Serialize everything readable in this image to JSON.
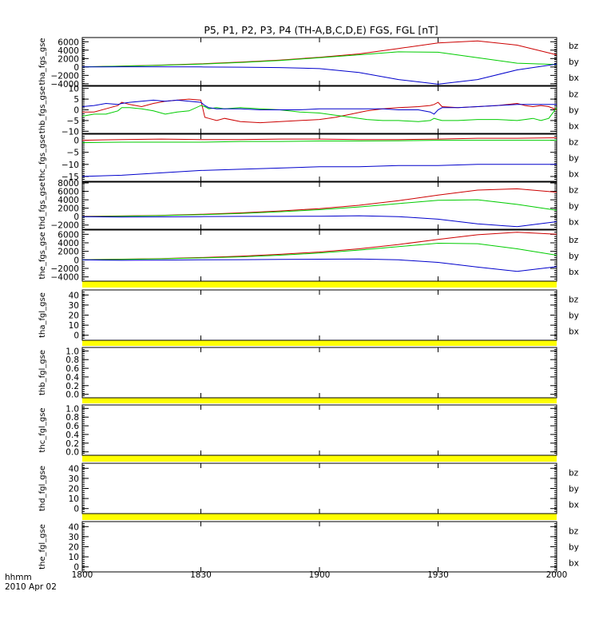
{
  "title": "P5, P1, P2, P3, P4 (TH-A,B,C,D,E) FGS, FGL [nT]",
  "xaxis": {
    "row1": "hhmm",
    "row2": "2010 Apr 02",
    "ticks": [
      "1800",
      "1830",
      "1900",
      "1930",
      "2000"
    ],
    "tick_values_min": [
      0,
      30,
      60,
      90,
      120
    ],
    "range_min": [
      0,
      120
    ]
  },
  "colors": {
    "bx": "#0000cc",
    "by": "#00cc00",
    "bz": "#cc0000",
    "gap_bar": "#ffff00"
  },
  "chart_data": [
    {
      "type": "line",
      "ylabel": "tha_fgs_gse",
      "ylim": [
        -4400,
        7000
      ],
      "yticks": [
        "6000",
        "4000",
        "2000",
        "0",
        "−2000",
        "−4000"
      ],
      "ytick_values": [
        6000,
        4000,
        2000,
        0,
        -2000,
        -4000
      ],
      "x": [
        0,
        10,
        20,
        30,
        40,
        50,
        60,
        70,
        80,
        90,
        100,
        110,
        120
      ],
      "legend": [
        "bz",
        "by",
        "bx"
      ],
      "series": [
        {
          "name": "bz",
          "values": [
            50,
            200,
            450,
            750,
            1150,
            1650,
            2300,
            3100,
            4400,
            5700,
            6200,
            5200,
            2900
          ]
        },
        {
          "name": "by",
          "values": [
            30,
            180,
            400,
            700,
            1050,
            1550,
            2200,
            2900,
            3600,
            3500,
            2200,
            900,
            600
          ]
        },
        {
          "name": "bx",
          "values": [
            0,
            50,
            50,
            0,
            -50,
            -150,
            -400,
            -1300,
            -3000,
            -4100,
            -3000,
            -700,
            700
          ]
        }
      ]
    },
    {
      "type": "line",
      "ylabel": "thb_fgs_gse",
      "ylim": [
        -11,
        11
      ],
      "yticks": [
        "10",
        "5",
        "0",
        "−5",
        "−10"
      ],
      "ytick_values": [
        10,
        5,
        0,
        -5,
        -10
      ],
      "x": [
        0,
        3,
        6,
        9,
        10,
        12,
        15,
        18,
        21,
        24,
        27,
        30,
        31,
        32,
        34,
        36,
        40,
        45,
        50,
        55,
        60,
        64,
        68,
        72,
        76,
        80,
        85,
        88,
        89,
        90,
        91,
        95,
        100,
        105,
        110,
        112,
        114,
        116,
        118,
        120
      ],
      "legend": [
        "bz",
        "by",
        "bx"
      ],
      "series": [
        {
          "name": "bz",
          "values": [
            -1,
            -1,
            0.5,
            2,
            3.5,
            2.5,
            1.5,
            3,
            4,
            4.5,
            5,
            4.5,
            -3.5,
            -4,
            -5,
            -4,
            -5.5,
            -6,
            -5.5,
            -5,
            -4.5,
            -3.5,
            -2,
            -0.5,
            0.5,
            1,
            1.5,
            2,
            2.5,
            3.5,
            1.5,
            1,
            1.5,
            2,
            3,
            2,
            1.5,
            2,
            1.5,
            0
          ]
        },
        {
          "name": "by",
          "values": [
            -3,
            -2,
            -2,
            -0.5,
            1,
            1,
            0.5,
            -0.5,
            -2,
            -1,
            -0.5,
            2,
            1.5,
            0.5,
            1,
            0.5,
            1,
            0.5,
            0,
            -1,
            -1.5,
            -2.5,
            -3.5,
            -4.5,
            -5,
            -5,
            -5.5,
            -5,
            -4,
            -4.5,
            -5,
            -5,
            -4.5,
            -4.5,
            -5,
            -4.5,
            -4,
            -5,
            -4,
            1
          ]
        },
        {
          "name": "bx",
          "values": [
            1.5,
            2,
            3,
            2.5,
            3,
            3.5,
            4,
            4.5,
            4,
            4.5,
            4,
            3.5,
            2,
            1,
            0.5,
            0.5,
            0.5,
            0,
            0,
            0,
            0.5,
            0.5,
            0.5,
            0.5,
            0.5,
            0,
            0,
            -1,
            -2,
            0,
            1,
            1,
            1.5,
            2,
            2.5,
            2.5,
            2.5,
            2.5,
            2.5,
            2.5
          ]
        }
      ]
    },
    {
      "type": "line",
      "ylabel": "thc_fgs_gse",
      "ylim": [
        -17,
        2.5
      ],
      "yticks": [
        "0",
        "−5",
        "−10",
        "−15"
      ],
      "ytick_values": [
        0,
        -5,
        -10,
        -15
      ],
      "x": [
        0,
        10,
        20,
        30,
        40,
        50,
        60,
        70,
        80,
        90,
        100,
        110,
        120
      ],
      "legend": [
        "bz",
        "by",
        "bx"
      ],
      "series": [
        {
          "name": "bz",
          "values": [
            0,
            0.3,
            0.5,
            0.3,
            0.3,
            0.5,
            0.5,
            0.3,
            0.3,
            0.5,
            0.8,
            0.8,
            1
          ]
        },
        {
          "name": "by",
          "values": [
            -1,
            -0.8,
            -0.8,
            -0.8,
            -0.5,
            -0.5,
            -0.3,
            -0.3,
            -0.2,
            0,
            0,
            0,
            0
          ]
        },
        {
          "name": "bx",
          "values": [
            -15,
            -14.5,
            -13.5,
            -12.5,
            -12,
            -11.5,
            -11,
            -11,
            -10.5,
            -10.5,
            -10,
            -10,
            -10
          ]
        }
      ]
    },
    {
      "type": "line",
      "ylabel": "thd_fgs_gse",
      "ylim": [
        -3000,
        8200
      ],
      "yticks": [
        "8000",
        "6000",
        "4000",
        "2000",
        "0",
        "−2000"
      ],
      "ytick_values": [
        8000,
        6000,
        4000,
        2000,
        0,
        -2000
      ],
      "x": [
        0,
        10,
        20,
        30,
        40,
        50,
        60,
        70,
        80,
        90,
        100,
        110,
        120
      ],
      "legend": [
        "bz",
        "by",
        "bx"
      ],
      "series": [
        {
          "name": "bz",
          "values": [
            50,
            150,
            300,
            550,
            900,
            1350,
            1900,
            2700,
            3800,
            5100,
            6300,
            6600,
            5800
          ]
        },
        {
          "name": "by",
          "values": [
            0,
            100,
            250,
            450,
            750,
            1150,
            1650,
            2300,
            3100,
            3900,
            4000,
            2900,
            1500
          ]
        },
        {
          "name": "bx",
          "values": [
            0,
            -100,
            -50,
            0,
            50,
            50,
            100,
            200,
            0,
            -600,
            -1700,
            -2400,
            -1200
          ]
        }
      ]
    },
    {
      "type": "line",
      "ylabel": "the_fgs_gse",
      "ylim": [
        -5000,
        7000
      ],
      "yticks": [
        "6000",
        "4000",
        "2000",
        "0",
        "−2000",
        "−4000"
      ],
      "ytick_values": [
        6000,
        4000,
        2000,
        0,
        -2000,
        -4000
      ],
      "x": [
        0,
        10,
        20,
        30,
        40,
        50,
        60,
        70,
        80,
        90,
        100,
        110,
        120
      ],
      "legend": [
        "bz",
        "by",
        "bx"
      ],
      "series": [
        {
          "name": "bz",
          "values": [
            50,
            150,
            300,
            550,
            850,
            1300,
            1850,
            2600,
            3600,
            4800,
            5900,
            6500,
            6000
          ]
        },
        {
          "name": "by",
          "values": [
            0,
            100,
            250,
            450,
            700,
            1100,
            1600,
            2300,
            3100,
            3900,
            3800,
            2600,
            1100
          ]
        },
        {
          "name": "bx",
          "values": [
            0,
            -100,
            -50,
            0,
            50,
            100,
            150,
            200,
            0,
            -600,
            -1700,
            -2700,
            -1600
          ]
        }
      ]
    },
    {
      "type": "line",
      "ylabel": "tha_fgl_gse",
      "ylim": [
        -5,
        45
      ],
      "yticks": [
        "40",
        "30",
        "20",
        "10",
        "0"
      ],
      "ytick_values": [
        40,
        30,
        20,
        10,
        0
      ],
      "legend": [
        "bz",
        "by",
        "bx"
      ],
      "series": []
    },
    {
      "type": "line",
      "ylabel": "thb_fgl_gse",
      "ylim": [
        -0.08,
        1.08
      ],
      "yticks": [
        "1.0",
        "0.8",
        "0.6",
        "0.4",
        "0.2",
        "0.0"
      ],
      "ytick_values": [
        1.0,
        0.8,
        0.6,
        0.4,
        0.2,
        0.0
      ],
      "legend": [],
      "series": []
    },
    {
      "type": "line",
      "ylabel": "thc_fgl_gse",
      "ylim": [
        -0.08,
        1.08
      ],
      "yticks": [
        "1.0",
        "0.8",
        "0.6",
        "0.4",
        "0.2",
        "0.0"
      ],
      "ytick_values": [
        1.0,
        0.8,
        0.6,
        0.4,
        0.2,
        0.0
      ],
      "legend": [],
      "series": []
    },
    {
      "type": "line",
      "ylabel": "thd_fgl_gse",
      "ylim": [
        -5,
        45
      ],
      "yticks": [
        "40",
        "30",
        "20",
        "10",
        "0"
      ],
      "ytick_values": [
        40,
        30,
        20,
        10,
        0
      ],
      "legend": [
        "bz",
        "by",
        "bx"
      ],
      "series": []
    },
    {
      "type": "line",
      "ylabel": "the_fgl_gse",
      "ylim": [
        -5,
        45
      ],
      "yticks": [
        "40",
        "30",
        "20",
        "10",
        "0"
      ],
      "ytick_values": [
        40,
        30,
        20,
        10,
        0
      ],
      "legend": [
        "bz",
        "by",
        "bx"
      ],
      "series": []
    }
  ]
}
